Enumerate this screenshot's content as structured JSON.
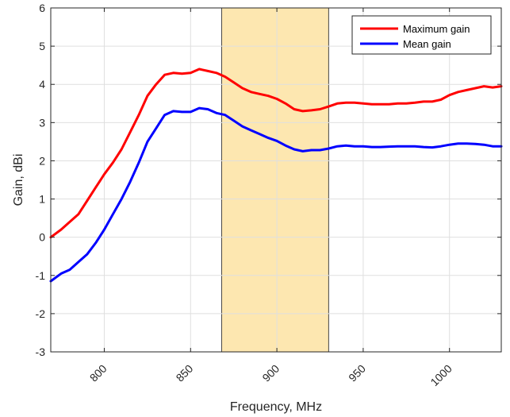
{
  "chart_data": {
    "type": "line",
    "xlabel": "Frequency, MHz",
    "ylabel": "Gain, dBi",
    "xlim": [
      769,
      1030
    ],
    "ylim": [
      -3,
      6
    ],
    "xticks": [
      800,
      850,
      900,
      950,
      1000
    ],
    "yticks": [
      -3,
      -2,
      -1,
      0,
      1,
      2,
      3,
      4,
      5,
      6
    ],
    "grid": true,
    "legend_position": "top-right",
    "highlight_band": {
      "x": [
        868,
        930
      ],
      "color": "#fde7b0"
    },
    "series": [
      {
        "name": "Maximum gain",
        "color": "#ff0000",
        "points": [
          [
            769,
            0.0
          ],
          [
            775,
            0.2
          ],
          [
            780,
            0.4
          ],
          [
            785,
            0.6
          ],
          [
            790,
            0.95
          ],
          [
            795,
            1.3
          ],
          [
            800,
            1.65
          ],
          [
            805,
            1.95
          ],
          [
            810,
            2.3
          ],
          [
            815,
            2.75
          ],
          [
            820,
            3.2
          ],
          [
            825,
            3.7
          ],
          [
            830,
            4.0
          ],
          [
            835,
            4.25
          ],
          [
            840,
            4.3
          ],
          [
            845,
            4.28
          ],
          [
            850,
            4.3
          ],
          [
            855,
            4.4
          ],
          [
            860,
            4.35
          ],
          [
            865,
            4.3
          ],
          [
            870,
            4.2
          ],
          [
            875,
            4.05
          ],
          [
            880,
            3.9
          ],
          [
            885,
            3.8
          ],
          [
            890,
            3.75
          ],
          [
            895,
            3.7
          ],
          [
            900,
            3.62
          ],
          [
            905,
            3.5
          ],
          [
            910,
            3.35
          ],
          [
            915,
            3.3
          ],
          [
            920,
            3.32
          ],
          [
            925,
            3.35
          ],
          [
            930,
            3.42
          ],
          [
            935,
            3.5
          ],
          [
            940,
            3.52
          ],
          [
            945,
            3.52
          ],
          [
            950,
            3.5
          ],
          [
            955,
            3.48
          ],
          [
            960,
            3.48
          ],
          [
            965,
            3.48
          ],
          [
            970,
            3.5
          ],
          [
            975,
            3.5
          ],
          [
            980,
            3.52
          ],
          [
            985,
            3.55
          ],
          [
            990,
            3.55
          ],
          [
            995,
            3.6
          ],
          [
            1000,
            3.72
          ],
          [
            1005,
            3.8
          ],
          [
            1010,
            3.85
          ],
          [
            1015,
            3.9
          ],
          [
            1020,
            3.95
          ],
          [
            1025,
            3.92
          ],
          [
            1030,
            3.95
          ]
        ]
      },
      {
        "name": "Mean gain",
        "color": "#0000ff",
        "points": [
          [
            769,
            -1.15
          ],
          [
            775,
            -0.95
          ],
          [
            780,
            -0.85
          ],
          [
            785,
            -0.65
          ],
          [
            790,
            -0.45
          ],
          [
            795,
            -0.15
          ],
          [
            800,
            0.2
          ],
          [
            805,
            0.6
          ],
          [
            810,
            1.0
          ],
          [
            815,
            1.45
          ],
          [
            820,
            1.95
          ],
          [
            825,
            2.5
          ],
          [
            830,
            2.85
          ],
          [
            835,
            3.2
          ],
          [
            840,
            3.3
          ],
          [
            845,
            3.28
          ],
          [
            850,
            3.28
          ],
          [
            855,
            3.38
          ],
          [
            860,
            3.35
          ],
          [
            865,
            3.25
          ],
          [
            870,
            3.2
          ],
          [
            875,
            3.05
          ],
          [
            880,
            2.9
          ],
          [
            885,
            2.8
          ],
          [
            890,
            2.7
          ],
          [
            895,
            2.6
          ],
          [
            900,
            2.52
          ],
          [
            905,
            2.4
          ],
          [
            910,
            2.3
          ],
          [
            915,
            2.25
          ],
          [
            920,
            2.28
          ],
          [
            925,
            2.28
          ],
          [
            930,
            2.32
          ],
          [
            935,
            2.38
          ],
          [
            940,
            2.4
          ],
          [
            945,
            2.38
          ],
          [
            950,
            2.38
          ],
          [
            955,
            2.36
          ],
          [
            960,
            2.36
          ],
          [
            965,
            2.37
          ],
          [
            970,
            2.38
          ],
          [
            975,
            2.38
          ],
          [
            980,
            2.38
          ],
          [
            985,
            2.36
          ],
          [
            990,
            2.35
          ],
          [
            995,
            2.38
          ],
          [
            1000,
            2.42
          ],
          [
            1005,
            2.45
          ],
          [
            1010,
            2.45
          ],
          [
            1015,
            2.44
          ],
          [
            1020,
            2.42
          ],
          [
            1025,
            2.38
          ],
          [
            1030,
            2.38
          ]
        ]
      }
    ]
  }
}
